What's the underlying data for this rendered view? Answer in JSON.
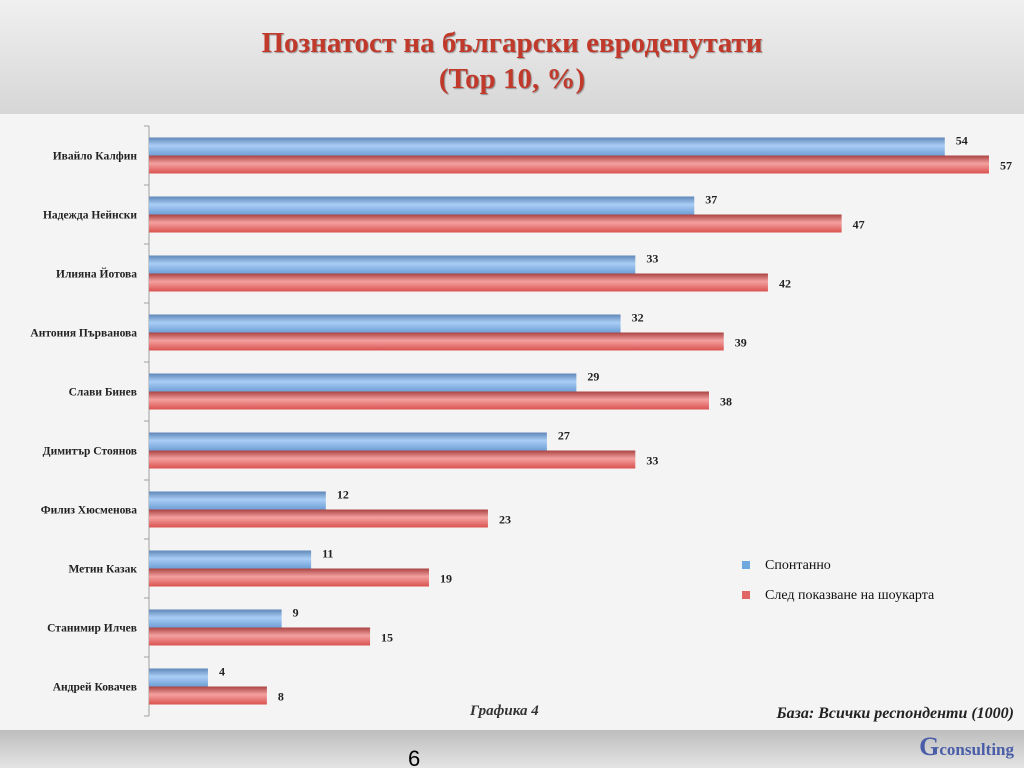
{
  "title": {
    "line1": "Познатост на български евродепутати",
    "line2": "(Top 10, %)"
  },
  "chart_data": {
    "type": "bar",
    "orientation": "horizontal",
    "categories": [
      "Ивайло Калфин",
      "Надежда Нейнски",
      "Илияна Йотова",
      "Антония Първанова",
      "Слави Бинев",
      "Димитър Стоянов",
      "Филиз Хюсменова",
      "Метин Казак",
      "Станимир Илчев",
      "Андрей Ковачев"
    ],
    "series": [
      {
        "name": "Спонтанно",
        "values": [
          54,
          37,
          33,
          32,
          29,
          27,
          12,
          11,
          9,
          4
        ],
        "color": "#6fa8dc"
      },
      {
        "name": "След показване на шоукарта",
        "values": [
          57,
          47,
          42,
          39,
          38,
          33,
          23,
          19,
          15,
          8
        ],
        "color": "#e06666"
      }
    ],
    "xlim": [
      0,
      57
    ],
    "grid": false,
    "legend_position": "right",
    "data_labels": true
  },
  "caption": "Графика 4",
  "base_note": "База:  Всички респонденти (1000)",
  "page_number": "6",
  "brand": {
    "initial": "G",
    "rest": "consulting"
  },
  "colors": {
    "title": "#c0392b",
    "brand": "#4a5ea8"
  }
}
